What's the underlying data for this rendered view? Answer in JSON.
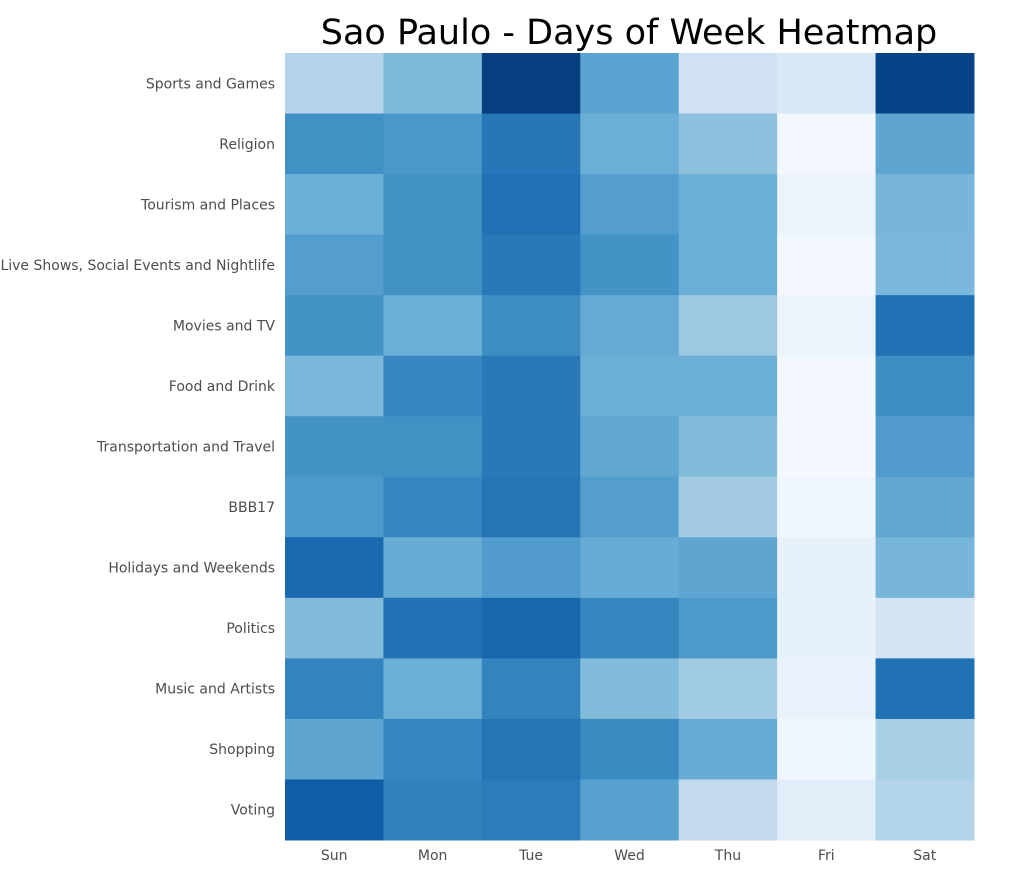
{
  "chart_data": {
    "type": "heatmap",
    "title": "Sao Paulo - Days of Week Heatmap",
    "xlabel": "",
    "ylabel": "",
    "colormap": "Blues",
    "colormap_stops": [
      "#f7fbff",
      "#deebf7",
      "#c6dbef",
      "#9ecae1",
      "#6baed6",
      "#4292c6",
      "#2171b5",
      "#08519c",
      "#08306b"
    ],
    "value_scale": "relative intensity 0-1 (no colorbar shown)",
    "grid": false,
    "x_categories": [
      "Sun",
      "Mon",
      "Tue",
      "Wed",
      "Thu",
      "Fri",
      "Sat"
    ],
    "y_categories": [
      "Sports and Games",
      "Religion",
      "Tourism and Places",
      "Live Shows, Social Events and Nightlife",
      "Movies and TV",
      "Food and Drink",
      "Transportation and Travel",
      "BBB17",
      "Holidays and Weekends",
      "Politics",
      "Music and Artists",
      "Shopping",
      "Voting"
    ],
    "values": [
      [
        0.3,
        0.45,
        0.95,
        0.55,
        0.2,
        0.15,
        0.93
      ],
      [
        0.63,
        0.6,
        0.73,
        0.5,
        0.42,
        0.03,
        0.54
      ],
      [
        0.5,
        0.62,
        0.75,
        0.57,
        0.5,
        0.06,
        0.47
      ],
      [
        0.57,
        0.63,
        0.72,
        0.62,
        0.5,
        0.02,
        0.46
      ],
      [
        0.62,
        0.5,
        0.64,
        0.52,
        0.38,
        0.06,
        0.75
      ],
      [
        0.46,
        0.67,
        0.72,
        0.5,
        0.5,
        0.02,
        0.64
      ],
      [
        0.62,
        0.63,
        0.72,
        0.53,
        0.44,
        0.02,
        0.58
      ],
      [
        0.59,
        0.67,
        0.74,
        0.57,
        0.36,
        0.04,
        0.53
      ],
      [
        0.78,
        0.51,
        0.58,
        0.51,
        0.54,
        0.08,
        0.47
      ],
      [
        0.44,
        0.75,
        0.79,
        0.67,
        0.59,
        0.08,
        0.18
      ],
      [
        0.68,
        0.5,
        0.68,
        0.44,
        0.37,
        0.07,
        0.75
      ],
      [
        0.54,
        0.67,
        0.74,
        0.65,
        0.51,
        0.04,
        0.34
      ],
      [
        0.83,
        0.69,
        0.71,
        0.56,
        0.26,
        0.11,
        0.31
      ]
    ]
  }
}
